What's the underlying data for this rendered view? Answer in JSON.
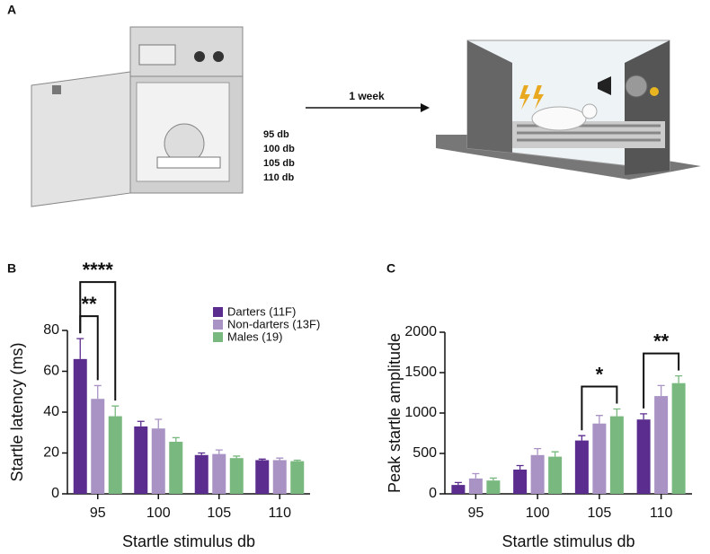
{
  "panel_a": {
    "label": "A",
    "levels": [
      "95 db",
      "100 db",
      "105 db",
      "110 db"
    ],
    "arrow_label": "1 week"
  },
  "chart_data": [
    {
      "type": "bar",
      "panel_label": "B",
      "y_label": "Startle latency (ms)",
      "x_label": "Startle stimulus db",
      "categories": [
        "95",
        "100",
        "105",
        "110"
      ],
      "series": [
        {
          "name": "Darters (11F)",
          "color": "#5b2d8e",
          "values": [
            66,
            33,
            19,
            16.5
          ],
          "errors": [
            10,
            2.5,
            1,
            0.5
          ]
        },
        {
          "name": "Non-darters (13F)",
          "color": "#a893c4",
          "values": [
            46.5,
            32,
            19.5,
            16.5
          ],
          "errors": [
            6.5,
            4.5,
            2,
            1
          ]
        },
        {
          "name": "Males (19)",
          "color": "#79b97f",
          "values": [
            38,
            25.5,
            17.5,
            16
          ],
          "errors": [
            5,
            2,
            1,
            0.5
          ]
        }
      ],
      "ylim": [
        0,
        80
      ],
      "yticks": [
        0,
        20,
        40,
        60,
        80
      ],
      "legend": "upper right",
      "annotations": [
        {
          "label": "**",
          "category": "95",
          "series": [
            "Darters (11F)",
            "Non-darters (13F)"
          ]
        },
        {
          "label": "****",
          "category": "95",
          "series": [
            "Darters (11F)",
            "Males (19)"
          ]
        }
      ]
    },
    {
      "type": "bar",
      "panel_label": "C",
      "y_label": "Peak startle amplitude",
      "x_label": "Startle stimulus db",
      "categories": [
        "95",
        "100",
        "105",
        "110"
      ],
      "series": [
        {
          "name": "Darters (11F)",
          "color": "#5b2d8e",
          "values": [
            110,
            300,
            660,
            920
          ],
          "errors": [
            30,
            50,
            60,
            70
          ]
        },
        {
          "name": "Non-darters (13F)",
          "color": "#a893c4",
          "values": [
            190,
            480,
            870,
            1210
          ],
          "errors": [
            60,
            80,
            100,
            130
          ]
        },
        {
          "name": "Males (19)",
          "color": "#79b97f",
          "values": [
            165,
            460,
            960,
            1370
          ],
          "errors": [
            30,
            60,
            90,
            90
          ]
        }
      ],
      "ylim": [
        0,
        2000
      ],
      "yticks": [
        0,
        500,
        1000,
        1500,
        2000
      ],
      "annotations": [
        {
          "label": "*",
          "category": "105",
          "series": [
            "Darters (11F)",
            "Males (19)"
          ]
        },
        {
          "label": "**",
          "category": "110",
          "series": [
            "Darters (11F)",
            "Males (19)"
          ]
        }
      ]
    }
  ]
}
